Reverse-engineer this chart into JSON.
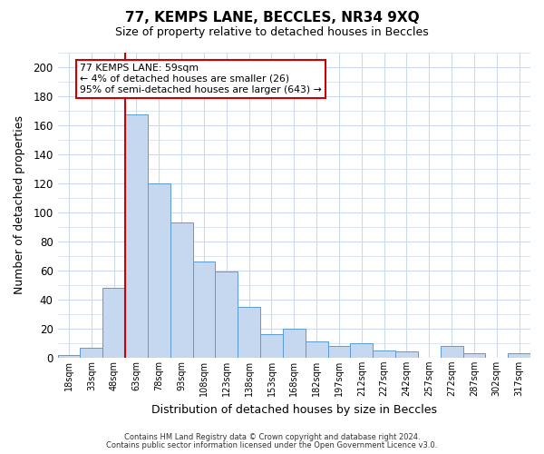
{
  "title": "77, KEMPS LANE, BECCLES, NR34 9XQ",
  "subtitle": "Size of property relative to detached houses in Beccles",
  "xlabel": "Distribution of detached houses by size in Beccles",
  "ylabel": "Number of detached properties",
  "bar_color": "#c5d8f0",
  "bar_edge_color": "#5b9bd5",
  "categories": [
    "18sqm",
    "33sqm",
    "48sqm",
    "63sqm",
    "78sqm",
    "93sqm",
    "108sqm",
    "123sqm",
    "138sqm",
    "153sqm",
    "168sqm",
    "182sqm",
    "197sqm",
    "212sqm",
    "227sqm",
    "242sqm",
    "257sqm",
    "272sqm",
    "287sqm",
    "302sqm",
    "317sqm"
  ],
  "values": [
    2,
    7,
    48,
    167,
    120,
    93,
    66,
    59,
    35,
    16,
    20,
    11,
    8,
    10,
    5,
    4,
    0,
    8,
    3,
    0,
    3
  ],
  "ylim": [
    0,
    210
  ],
  "yticks": [
    0,
    20,
    40,
    60,
    80,
    100,
    120,
    140,
    160,
    180,
    200
  ],
  "vline_index": 3,
  "vline_color": "#cc0000",
  "annotation_text": "77 KEMPS LANE: 59sqm\n← 4% of detached houses are smaller (26)\n95% of semi-detached houses are larger (643) →",
  "annotation_box_color": "#ffffff",
  "annotation_box_edgecolor": "#cc0000",
  "footer_line1": "Contains HM Land Registry data © Crown copyright and database right 2024.",
  "footer_line2": "Contains public sector information licensed under the Open Government Licence v3.0.",
  "bg_color": "#ffffff",
  "grid_color": "#ccdaea"
}
